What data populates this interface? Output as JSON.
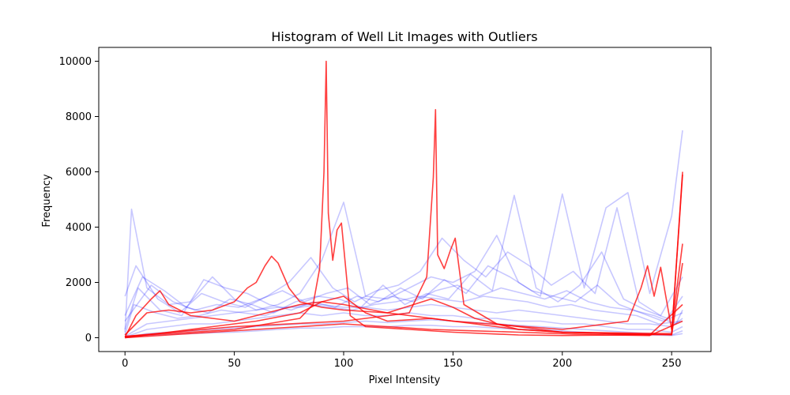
{
  "chart_data": {
    "type": "line",
    "title": "Histogram of Well Lit Images with Outliers",
    "xlabel": "Pixel Intensity",
    "ylabel": "Frequency",
    "xlim": [
      -12,
      268
    ],
    "ylim": [
      -500,
      10500
    ],
    "xticks": [
      0,
      50,
      100,
      150,
      200,
      250
    ],
    "yticks": [
      0,
      2000,
      4000,
      6000,
      8000,
      10000
    ],
    "grid": false,
    "legend": "none",
    "colors": {
      "normal": "#0000ff",
      "outlier": "#ff0000"
    },
    "normal_series": [
      {
        "x": [
          0,
          3,
          10,
          20,
          30,
          40,
          50,
          60,
          70,
          80,
          90,
          100,
          110,
          120,
          130,
          140,
          150,
          160,
          170,
          180,
          190,
          200,
          210,
          220,
          230,
          240,
          250,
          255
        ],
        "values": [
          200,
          4650,
          1800,
          1200,
          1300,
          2200,
          1400,
          1000,
          1200,
          1600,
          2800,
          4900,
          1500,
          1400,
          1800,
          2200,
          2000,
          2400,
          3700,
          2000,
          1500,
          5200,
          1800,
          4700,
          5250,
          1600,
          4400,
          7500
        ]
      },
      {
        "x": [
          0,
          5,
          15,
          25,
          35,
          45,
          55,
          65,
          75,
          85,
          95,
          105,
          115,
          125,
          135,
          145,
          155,
          165,
          175,
          185,
          195,
          205,
          215,
          225,
          235,
          245,
          255
        ],
        "values": [
          1500,
          2600,
          1400,
          900,
          1600,
          1300,
          1100,
          1500,
          2000,
          2900,
          1800,
          1300,
          1700,
          1900,
          2400,
          3600,
          2800,
          2200,
          3100,
          2600,
          1900,
          2400,
          1600,
          4700,
          1300,
          800,
          2200
        ]
      },
      {
        "x": [
          0,
          8,
          18,
          28,
          38,
          48,
          58,
          68,
          78,
          88,
          98,
          108,
          118,
          128,
          138,
          148,
          158,
          168,
          178,
          188,
          198,
          208,
          218,
          228,
          238,
          248,
          255
        ],
        "values": [
          800,
          2200,
          1700,
          1100,
          900,
          1400,
          1200,
          900,
          1300,
          1500,
          1400,
          1100,
          1900,
          1200,
          1600,
          1400,
          2300,
          1700,
          5150,
          1800,
          1300,
          1900,
          3100,
          1400,
          1000,
          700,
          1500
        ]
      },
      {
        "x": [
          0,
          6,
          16,
          26,
          36,
          46,
          56,
          66,
          76,
          86,
          96,
          106,
          116,
          126,
          136,
          146,
          156,
          166,
          176,
          186,
          196,
          206,
          216,
          226,
          236,
          246,
          255
        ],
        "values": [
          300,
          1800,
          1000,
          800,
          2100,
          1800,
          1600,
          1200,
          1000,
          1300,
          1100,
          1500,
          1300,
          1800,
          1400,
          2100,
          1600,
          2600,
          2200,
          1700,
          1500,
          1300,
          1900,
          1200,
          900,
          600,
          900
        ]
      },
      {
        "x": [
          0,
          4,
          14,
          24,
          34,
          44,
          54,
          64,
          74,
          84,
          94,
          104,
          114,
          124,
          134,
          144,
          154,
          164,
          174,
          184,
          194,
          204,
          214,
          224,
          234,
          244,
          255
        ],
        "values": [
          100,
          1200,
          900,
          700,
          800,
          1000,
          900,
          800,
          1100,
          1200,
          1100,
          1000,
          1200,
          1300,
          1500,
          1400,
          1300,
          1500,
          1400,
          1300,
          1100,
          1200,
          1000,
          900,
          800,
          500,
          600
        ]
      },
      {
        "x": [
          0,
          10,
          20,
          30,
          40,
          50,
          60,
          70,
          80,
          90,
          100,
          110,
          120,
          130,
          140,
          150,
          160,
          170,
          180,
          190,
          200,
          210,
          220,
          230,
          240,
          250,
          255
        ],
        "values": [
          50,
          500,
          600,
          700,
          800,
          900,
          1000,
          1100,
          1100,
          1200,
          1100,
          1100,
          1000,
          1100,
          1200,
          1100,
          1000,
          900,
          1000,
          900,
          800,
          700,
          600,
          500,
          500,
          400,
          700
        ]
      },
      {
        "x": [
          0,
          10,
          20,
          30,
          40,
          50,
          60,
          70,
          80,
          90,
          100,
          110,
          120,
          130,
          140,
          150,
          160,
          170,
          180,
          190,
          200,
          210,
          220,
          230,
          240,
          250,
          255
        ],
        "values": [
          20,
          300,
          400,
          500,
          500,
          600,
          700,
          800,
          900,
          800,
          900,
          800,
          800,
          900,
          800,
          800,
          700,
          700,
          600,
          600,
          500,
          500,
          400,
          300,
          300,
          200,
          400
        ]
      },
      {
        "x": [
          0,
          10,
          20,
          30,
          40,
          50,
          60,
          70,
          80,
          90,
          100,
          110,
          120,
          130,
          140,
          150,
          160,
          170,
          180,
          190,
          200,
          210,
          220,
          230,
          240,
          250,
          255
        ],
        "values": [
          10,
          150,
          200,
          250,
          300,
          350,
          400,
          450,
          500,
          500,
          550,
          600,
          550,
          600,
          650,
          600,
          550,
          500,
          450,
          400,
          350,
          300,
          250,
          200,
          150,
          100,
          250
        ]
      },
      {
        "x": [
          0,
          10,
          20,
          30,
          40,
          50,
          60,
          70,
          80,
          90,
          100,
          110,
          120,
          130,
          140,
          150,
          160,
          170,
          180,
          190,
          200,
          210,
          220,
          230,
          240,
          250,
          255
        ],
        "values": [
          0,
          80,
          120,
          150,
          180,
          200,
          250,
          300,
          350,
          350,
          400,
          400,
          400,
          450,
          450,
          400,
          400,
          350,
          300,
          300,
          250,
          200,
          150,
          120,
          100,
          80,
          150
        ]
      },
      {
        "x": [
          0,
          12,
          22,
          32,
          42,
          52,
          62,
          72,
          82,
          92,
          102,
          112,
          122,
          132,
          142,
          152,
          162,
          172,
          182,
          192,
          202,
          212,
          222,
          232,
          242,
          252,
          255
        ],
        "values": [
          600,
          1900,
          1300,
          1000,
          1200,
          1100,
          1400,
          1700,
          1300,
          1600,
          1800,
          1200,
          1500,
          1300,
          1700,
          1900,
          1500,
          1800,
          1600,
          1400,
          1700,
          1300,
          1100,
          1000,
          800,
          500,
          1000
        ]
      }
    ],
    "outlier_series": [
      {
        "x": [
          0,
          50,
          80,
          86,
          89,
          91,
          92,
          93,
          95,
          97,
          99,
          103,
          110,
          130,
          150,
          180,
          200,
          250,
          255
        ],
        "values": [
          50,
          300,
          700,
          1200,
          2500,
          6000,
          10000,
          4500,
          2800,
          3900,
          4150,
          800,
          400,
          300,
          200,
          100,
          80,
          120,
          6000
        ]
      },
      {
        "x": [
          0,
          50,
          100,
          130,
          138,
          141,
          142,
          143,
          146,
          149,
          151,
          155,
          170,
          200,
          250,
          255
        ],
        "values": [
          50,
          400,
          600,
          900,
          2200,
          5800,
          8250,
          3000,
          2500,
          3200,
          3600,
          1200,
          500,
          200,
          150,
          5900
        ]
      },
      {
        "x": [
          0,
          10,
          20,
          30,
          40,
          50,
          56,
          60,
          64,
          67,
          70,
          75,
          80,
          90,
          100,
          120,
          150,
          200,
          230,
          236,
          239,
          242,
          245,
          250,
          255
        ],
        "values": [
          100,
          900,
          1000,
          900,
          1000,
          1300,
          1800,
          2000,
          2600,
          2950,
          2700,
          1800,
          1300,
          1100,
          1000,
          900,
          600,
          300,
          600,
          1800,
          2600,
          1500,
          2550,
          300,
          3400
        ]
      },
      {
        "x": [
          0,
          5,
          12,
          16,
          20,
          30,
          40,
          50,
          60,
          70,
          80,
          90,
          100,
          120,
          140,
          150,
          160,
          180,
          200,
          230,
          250,
          255
        ],
        "values": [
          20,
          800,
          1400,
          1700,
          1200,
          800,
          700,
          600,
          800,
          1000,
          1200,
          1300,
          1200,
          900,
          1400,
          1100,
          700,
          300,
          200,
          150,
          100,
          2700
        ]
      },
      {
        "x": [
          0,
          20,
          40,
          60,
          80,
          90,
          100,
          110,
          120,
          140,
          160,
          180,
          200,
          220,
          240,
          255
        ],
        "values": [
          0,
          200,
          400,
          600,
          900,
          1300,
          1500,
          900,
          600,
          700,
          500,
          300,
          200,
          150,
          100,
          1200
        ]
      },
      {
        "x": [
          0,
          20,
          40,
          60,
          80,
          100,
          120,
          140,
          160,
          180,
          200,
          220,
          240,
          255
        ],
        "values": [
          0,
          100,
          200,
          300,
          400,
          500,
          400,
          300,
          250,
          200,
          150,
          100,
          80,
          600
        ]
      }
    ]
  }
}
